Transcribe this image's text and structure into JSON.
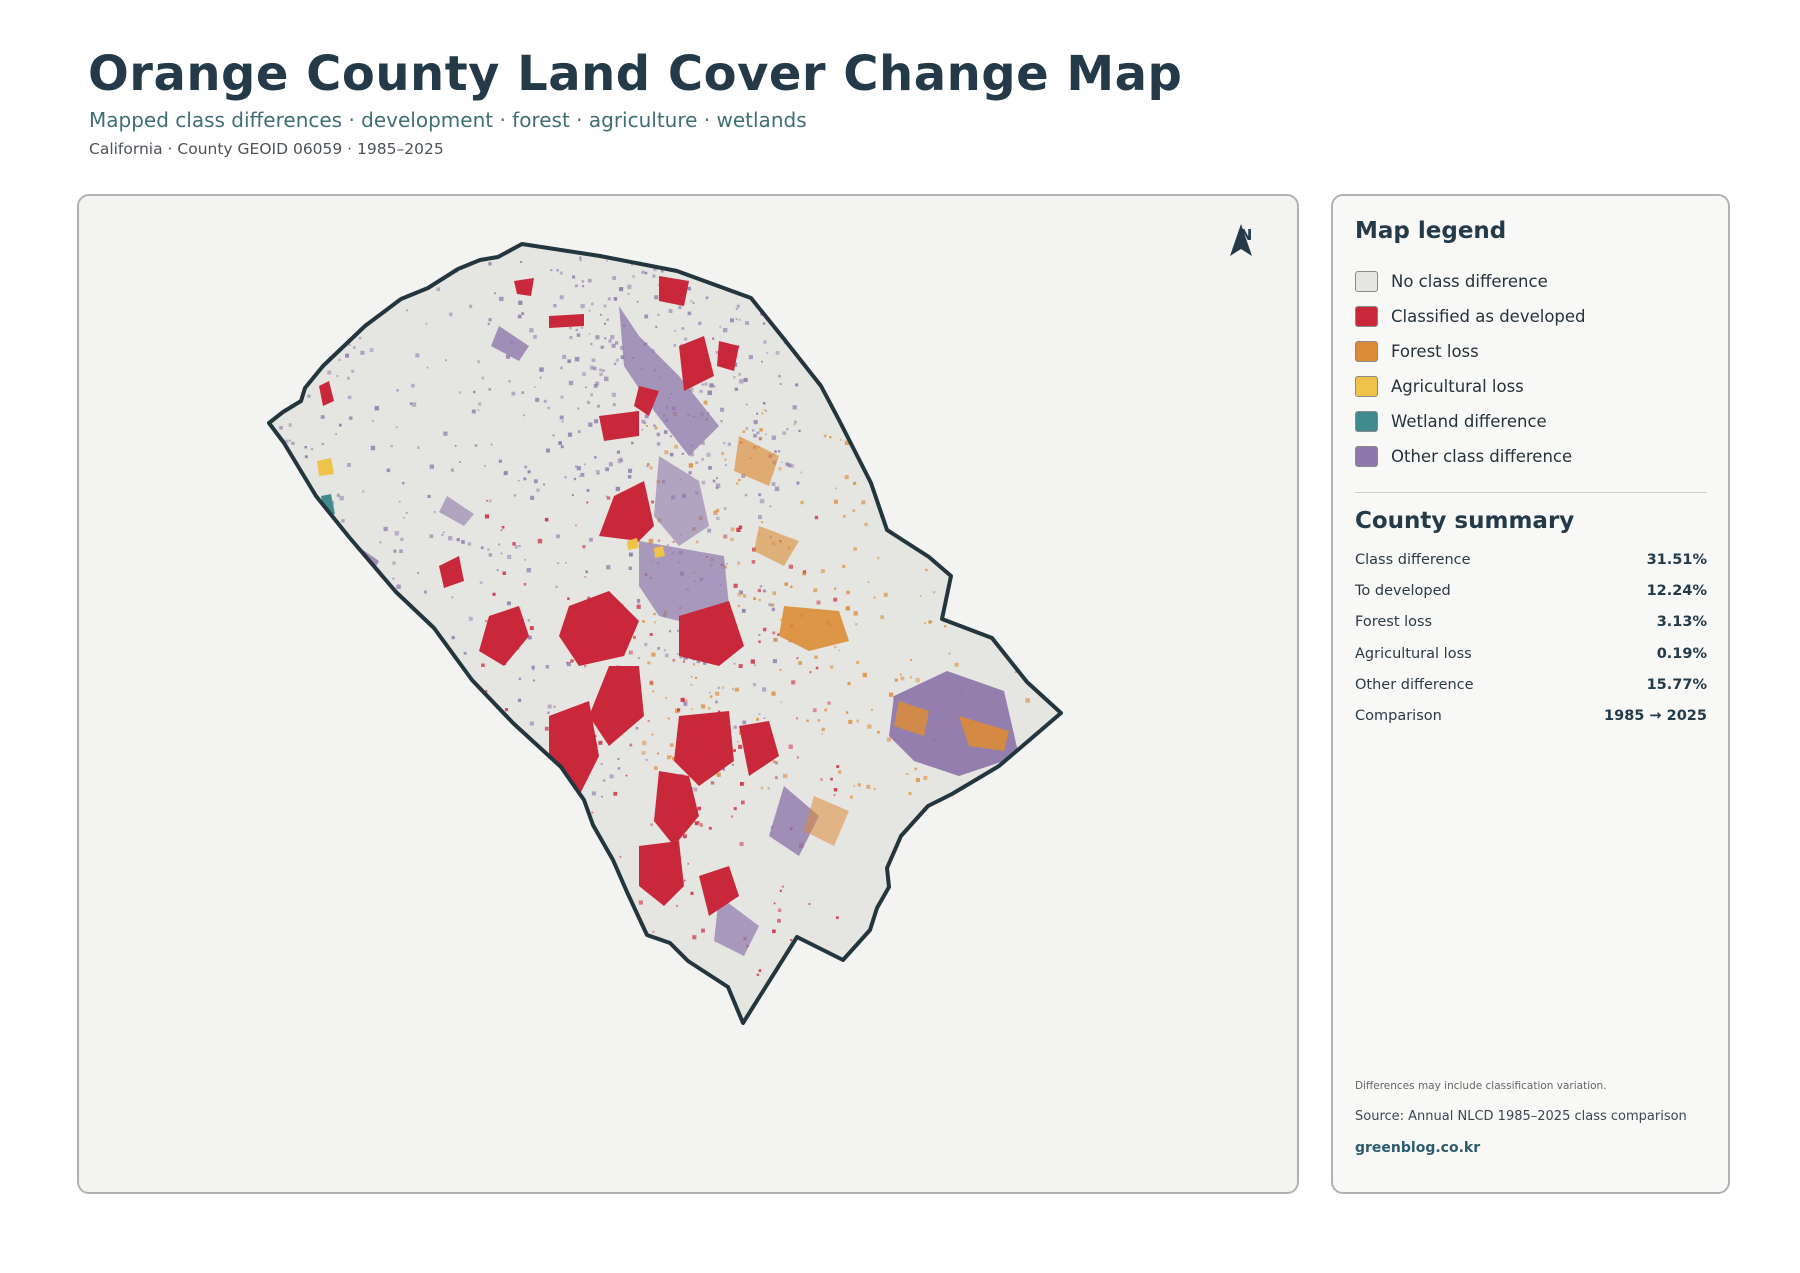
{
  "header": {
    "title": "Orange County Land Cover Change Map",
    "subtitle": "Mapped class differences · development · forest · agriculture · wetlands",
    "meta": "California · County GEOID 06059 · 1985–2025"
  },
  "map": {
    "north_label": "N",
    "colors": {
      "background": "#f3f3f1",
      "no_change": "#e5e5e2",
      "developed": "#c9283b",
      "forest_loss": "#dc8c37",
      "agricultural_loss": "#efc24a",
      "wetland": "#3f8b8d",
      "other": "#8e78ab",
      "boundary": "#23363e"
    }
  },
  "legend": {
    "heading": "Map legend",
    "items": [
      {
        "label": "No class difference",
        "color": "#e5e5e2",
        "icon": "swatch-square"
      },
      {
        "label": "Classified as developed",
        "color": "#c9283b",
        "icon": "swatch-square"
      },
      {
        "label": "Forest loss",
        "color": "#dc8c37",
        "icon": "swatch-square"
      },
      {
        "label": "Agricultural loss",
        "color": "#efc24a",
        "icon": "swatch-square"
      },
      {
        "label": "Wetland difference",
        "color": "#3f8b8d",
        "icon": "swatch-square"
      },
      {
        "label": "Other class difference",
        "color": "#8e78ab",
        "icon": "swatch-square"
      }
    ]
  },
  "summary": {
    "heading": "County summary",
    "rows": [
      {
        "label": "Class difference",
        "value": "31.51%"
      },
      {
        "label": "To developed",
        "value": "12.24%"
      },
      {
        "label": "Forest loss",
        "value": "3.13%"
      },
      {
        "label": "Agricultural loss",
        "value": "0.19%"
      },
      {
        "label": "Other difference",
        "value": "15.77%"
      },
      {
        "label": "Comparison",
        "value": "1985 → 2025"
      }
    ]
  },
  "footer": {
    "note": "Differences may include classification variation.",
    "source": "Source: Annual NLCD 1985–2025 class comparison",
    "site": "greenblog.co.kr"
  }
}
